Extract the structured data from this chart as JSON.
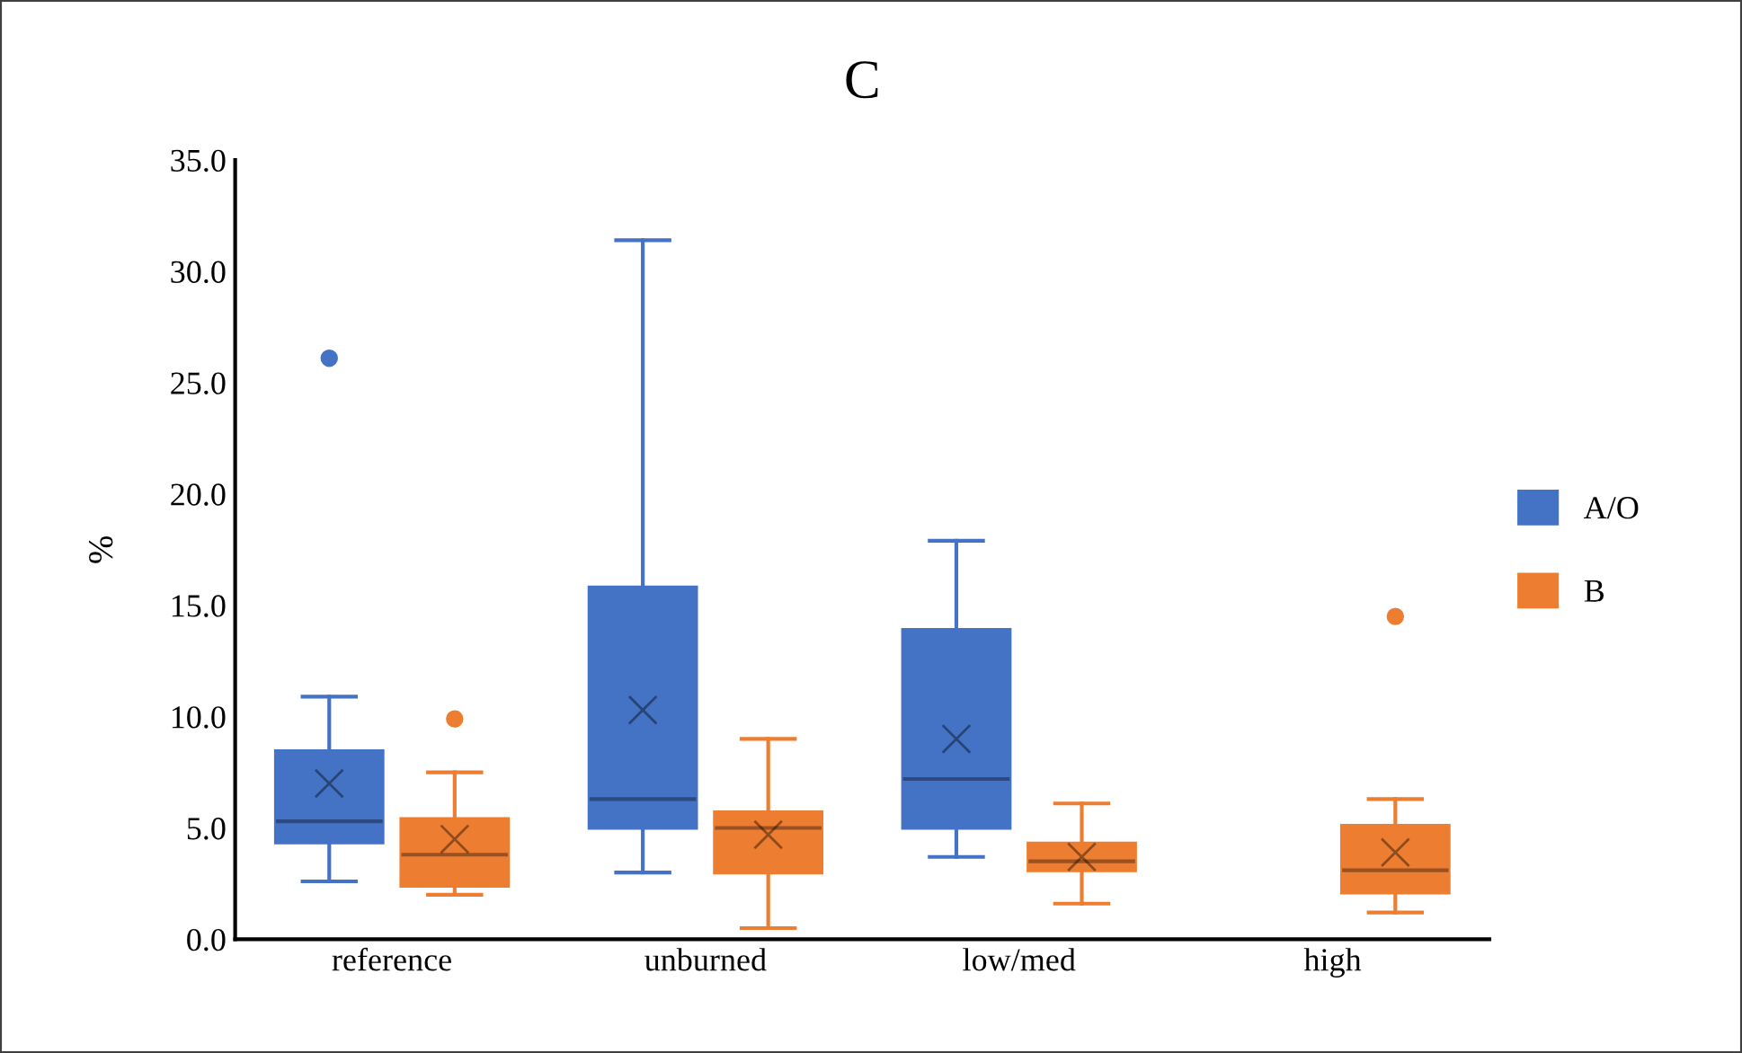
{
  "chart_data": {
    "type": "box",
    "title": "C",
    "ylabel": "%",
    "categories": [
      "reference",
      "unburned",
      "low/med",
      "high"
    ],
    "ylim": [
      0,
      35
    ],
    "yticks": [
      {
        "value": 0,
        "label": "0.0"
      },
      {
        "value": 5,
        "label": "5.0"
      },
      {
        "value": 10,
        "label": "10.0"
      },
      {
        "value": 15,
        "label": "15.0"
      },
      {
        "value": 20,
        "label": "20.0"
      },
      {
        "value": 25,
        "label": "25.0"
      },
      {
        "value": 30,
        "label": "30.0"
      },
      {
        "value": 35,
        "label": "35.0"
      }
    ],
    "legend": "right",
    "grid": false,
    "series": [
      {
        "name": "A/O",
        "color": "#4472c4",
        "boxes": [
          {
            "low": 2.6,
            "q1": 4.35,
            "median": 5.3,
            "q3": 8.45,
            "high": 10.9,
            "mean": 7.0,
            "outliers": [
              26.1
            ]
          },
          {
            "low": 3.0,
            "q1": 5.0,
            "median": 6.3,
            "q3": 15.8,
            "high": 31.4,
            "mean": 10.3
          },
          {
            "low": 3.7,
            "q1": 5.0,
            "median": 7.2,
            "q3": 13.9,
            "high": 17.9,
            "mean": 9.0
          },
          null
        ]
      },
      {
        "name": "B",
        "color": "#ed7d31",
        "boxes": [
          {
            "low": 2.0,
            "q1": 2.4,
            "median": 3.8,
            "q3": 5.4,
            "high": 7.5,
            "mean": 4.5,
            "outliers": [
              9.9
            ]
          },
          {
            "low": 0.5,
            "q1": 3.0,
            "median": 5.0,
            "q3": 5.7,
            "high": 9.0,
            "mean": 4.7
          },
          {
            "low": 1.6,
            "q1": 3.1,
            "median": 3.5,
            "q3": 4.3,
            "high": 6.1,
            "mean": 3.7
          },
          {
            "low": 1.2,
            "q1": 2.1,
            "median": 3.1,
            "q3": 5.1,
            "high": 6.3,
            "mean": 3.9,
            "outliers": [
              14.5
            ]
          }
        ]
      }
    ]
  }
}
